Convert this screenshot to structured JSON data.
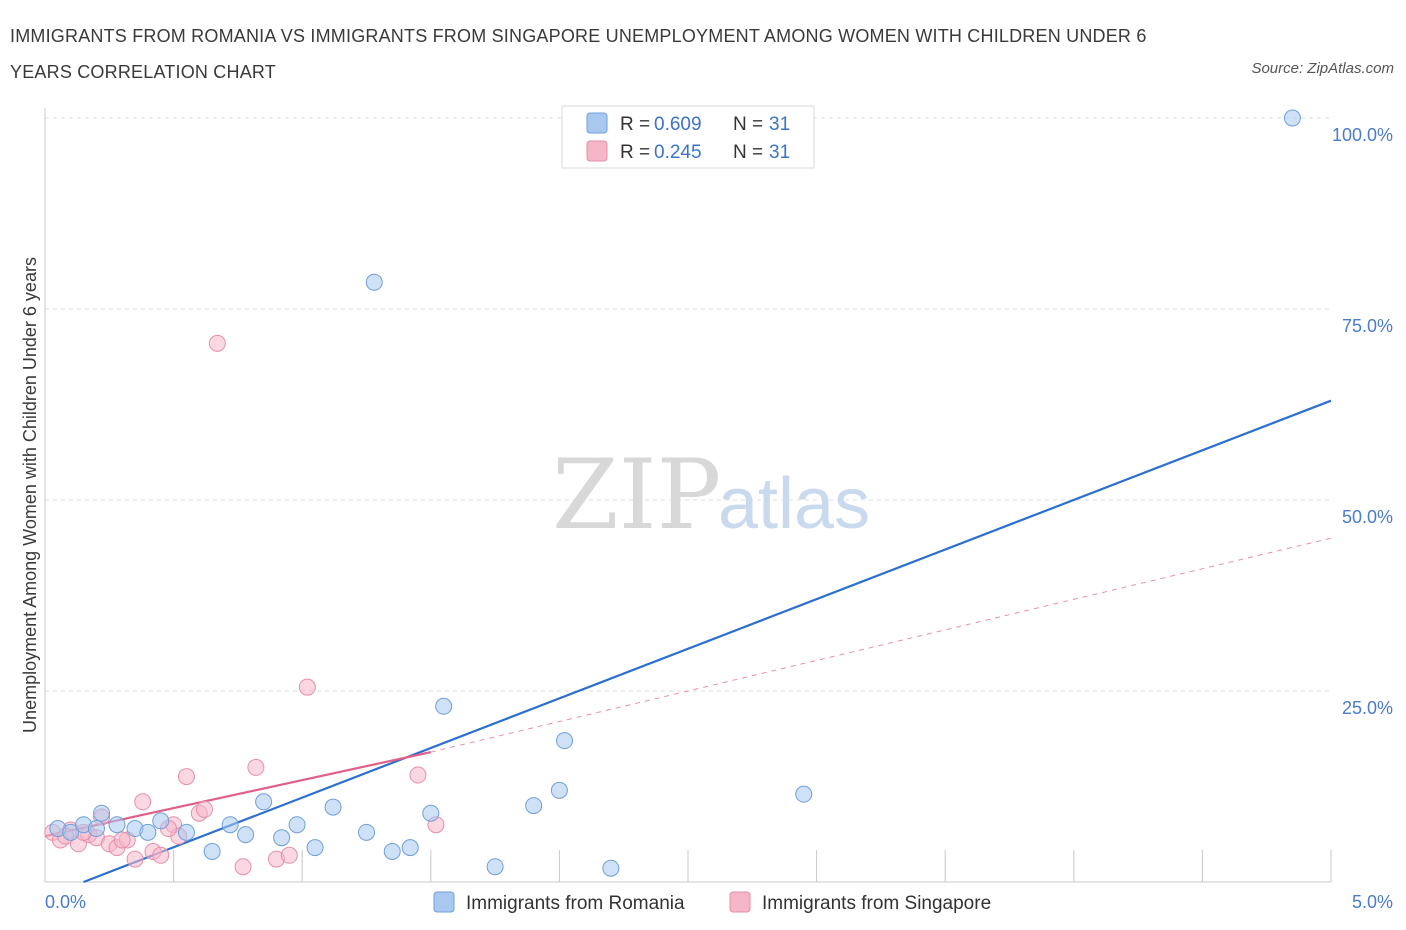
{
  "title": "IMMIGRANTS FROM ROMANIA VS IMMIGRANTS FROM SINGAPORE UNEMPLOYMENT AMONG WOMEN WITH CHILDREN UNDER 6 YEARS CORRELATION CHART",
  "source": "Source: ZipAtlas.com",
  "watermark": {
    "zip": "ZIP",
    "atlas": "atlas"
  },
  "colors": {
    "romania": "#a8c8f0",
    "romania_line": "#2b6fcf",
    "singapore": "#f5b6c8",
    "singapore_line": "#e0608a",
    "tick": "#4a7cc9"
  },
  "legend": {
    "rows": [
      {
        "r_label": "R = ",
        "r_value": "0.609",
        "n_label": "N = ",
        "n_value": "31"
      },
      {
        "r_label": "R = ",
        "r_value": "0.245",
        "n_label": "N = ",
        "n_value": "31"
      }
    ]
  },
  "bottom_legend": [
    "Immigrants from Romania",
    "Immigrants from Singapore"
  ],
  "chart_data": {
    "type": "scatter",
    "title": "IMMIGRANTS FROM ROMANIA VS IMMIGRANTS FROM SINGAPORE UNEMPLOYMENT AMONG WOMEN WITH CHILDREN UNDER 6 YEARS CORRELATION CHART",
    "xlabel": "",
    "ylabel": "Unemployment Among Women with Children Under 6 years",
    "xlim": [
      0,
      5
    ],
    "ylim": [
      0,
      100
    ],
    "x_tick_labels": [
      "0.0%",
      "5.0%"
    ],
    "y_tick_labels": [
      "100.0%",
      "75.0%",
      "50.0%",
      "25.0%"
    ],
    "y_ticks": [
      100,
      75,
      50,
      25
    ],
    "grid": true,
    "legend_position": "top-center",
    "series": [
      {
        "name": "Immigrants from Romania",
        "R": 0.609,
        "N": 31,
        "trend": {
          "x": [
            0.15,
            5.0
          ],
          "y": [
            0.0,
            63.0
          ]
        },
        "points": [
          [
            0.05,
            7.0
          ],
          [
            0.1,
            6.5
          ],
          [
            0.15,
            7.5
          ],
          [
            0.2,
            7.0
          ],
          [
            0.22,
            9.0
          ],
          [
            0.28,
            7.5
          ],
          [
            0.35,
            7.0
          ],
          [
            0.4,
            6.5
          ],
          [
            0.45,
            8.0
          ],
          [
            0.55,
            6.5
          ],
          [
            0.65,
            4.0
          ],
          [
            0.72,
            7.5
          ],
          [
            0.78,
            6.2
          ],
          [
            0.85,
            10.5
          ],
          [
            0.92,
            5.8
          ],
          [
            0.98,
            7.5
          ],
          [
            1.05,
            4.5
          ],
          [
            1.12,
            9.8
          ],
          [
            1.25,
            6.5
          ],
          [
            1.28,
            78.5
          ],
          [
            1.35,
            4.0
          ],
          [
            1.42,
            4.5
          ],
          [
            1.5,
            9.0
          ],
          [
            1.55,
            23.0
          ],
          [
            1.75,
            2.0
          ],
          [
            1.9,
            10.0
          ],
          [
            2.0,
            12.0
          ],
          [
            2.02,
            18.5
          ],
          [
            2.2,
            1.8
          ],
          [
            2.95,
            11.5
          ],
          [
            4.85,
            100.0
          ]
        ]
      },
      {
        "name": "Immigrants from Singapore",
        "R": 0.245,
        "N": 31,
        "trend": {
          "x": [
            0.0,
            1.5
          ],
          "y": [
            6.0,
            17.0
          ]
        },
        "trend_ext": {
          "x": [
            1.5,
            5.0
          ],
          "y": [
            17.0,
            45.0
          ]
        },
        "points": [
          [
            0.03,
            6.5
          ],
          [
            0.06,
            5.5
          ],
          [
            0.1,
            6.8
          ],
          [
            0.13,
            5.0
          ],
          [
            0.17,
            6.2
          ],
          [
            0.2,
            5.8
          ],
          [
            0.22,
            8.5
          ],
          [
            0.25,
            5.0
          ],
          [
            0.28,
            4.5
          ],
          [
            0.32,
            5.5
          ],
          [
            0.35,
            3.0
          ],
          [
            0.38,
            10.5
          ],
          [
            0.42,
            4.0
          ],
          [
            0.45,
            3.5
          ],
          [
            0.5,
            7.5
          ],
          [
            0.52,
            6.0
          ],
          [
            0.55,
            13.8
          ],
          [
            0.6,
            9.0
          ],
          [
            0.62,
            9.5
          ],
          [
            0.67,
            70.5
          ],
          [
            0.77,
            2.0
          ],
          [
            0.82,
            15.0
          ],
          [
            0.9,
            3.0
          ],
          [
            0.95,
            3.5
          ],
          [
            1.02,
            25.5
          ],
          [
            1.45,
            14.0
          ],
          [
            1.52,
            7.5
          ],
          [
            0.08,
            6.0
          ],
          [
            0.15,
            6.5
          ],
          [
            0.3,
            5.5
          ],
          [
            0.48,
            7.0
          ]
        ]
      }
    ]
  }
}
